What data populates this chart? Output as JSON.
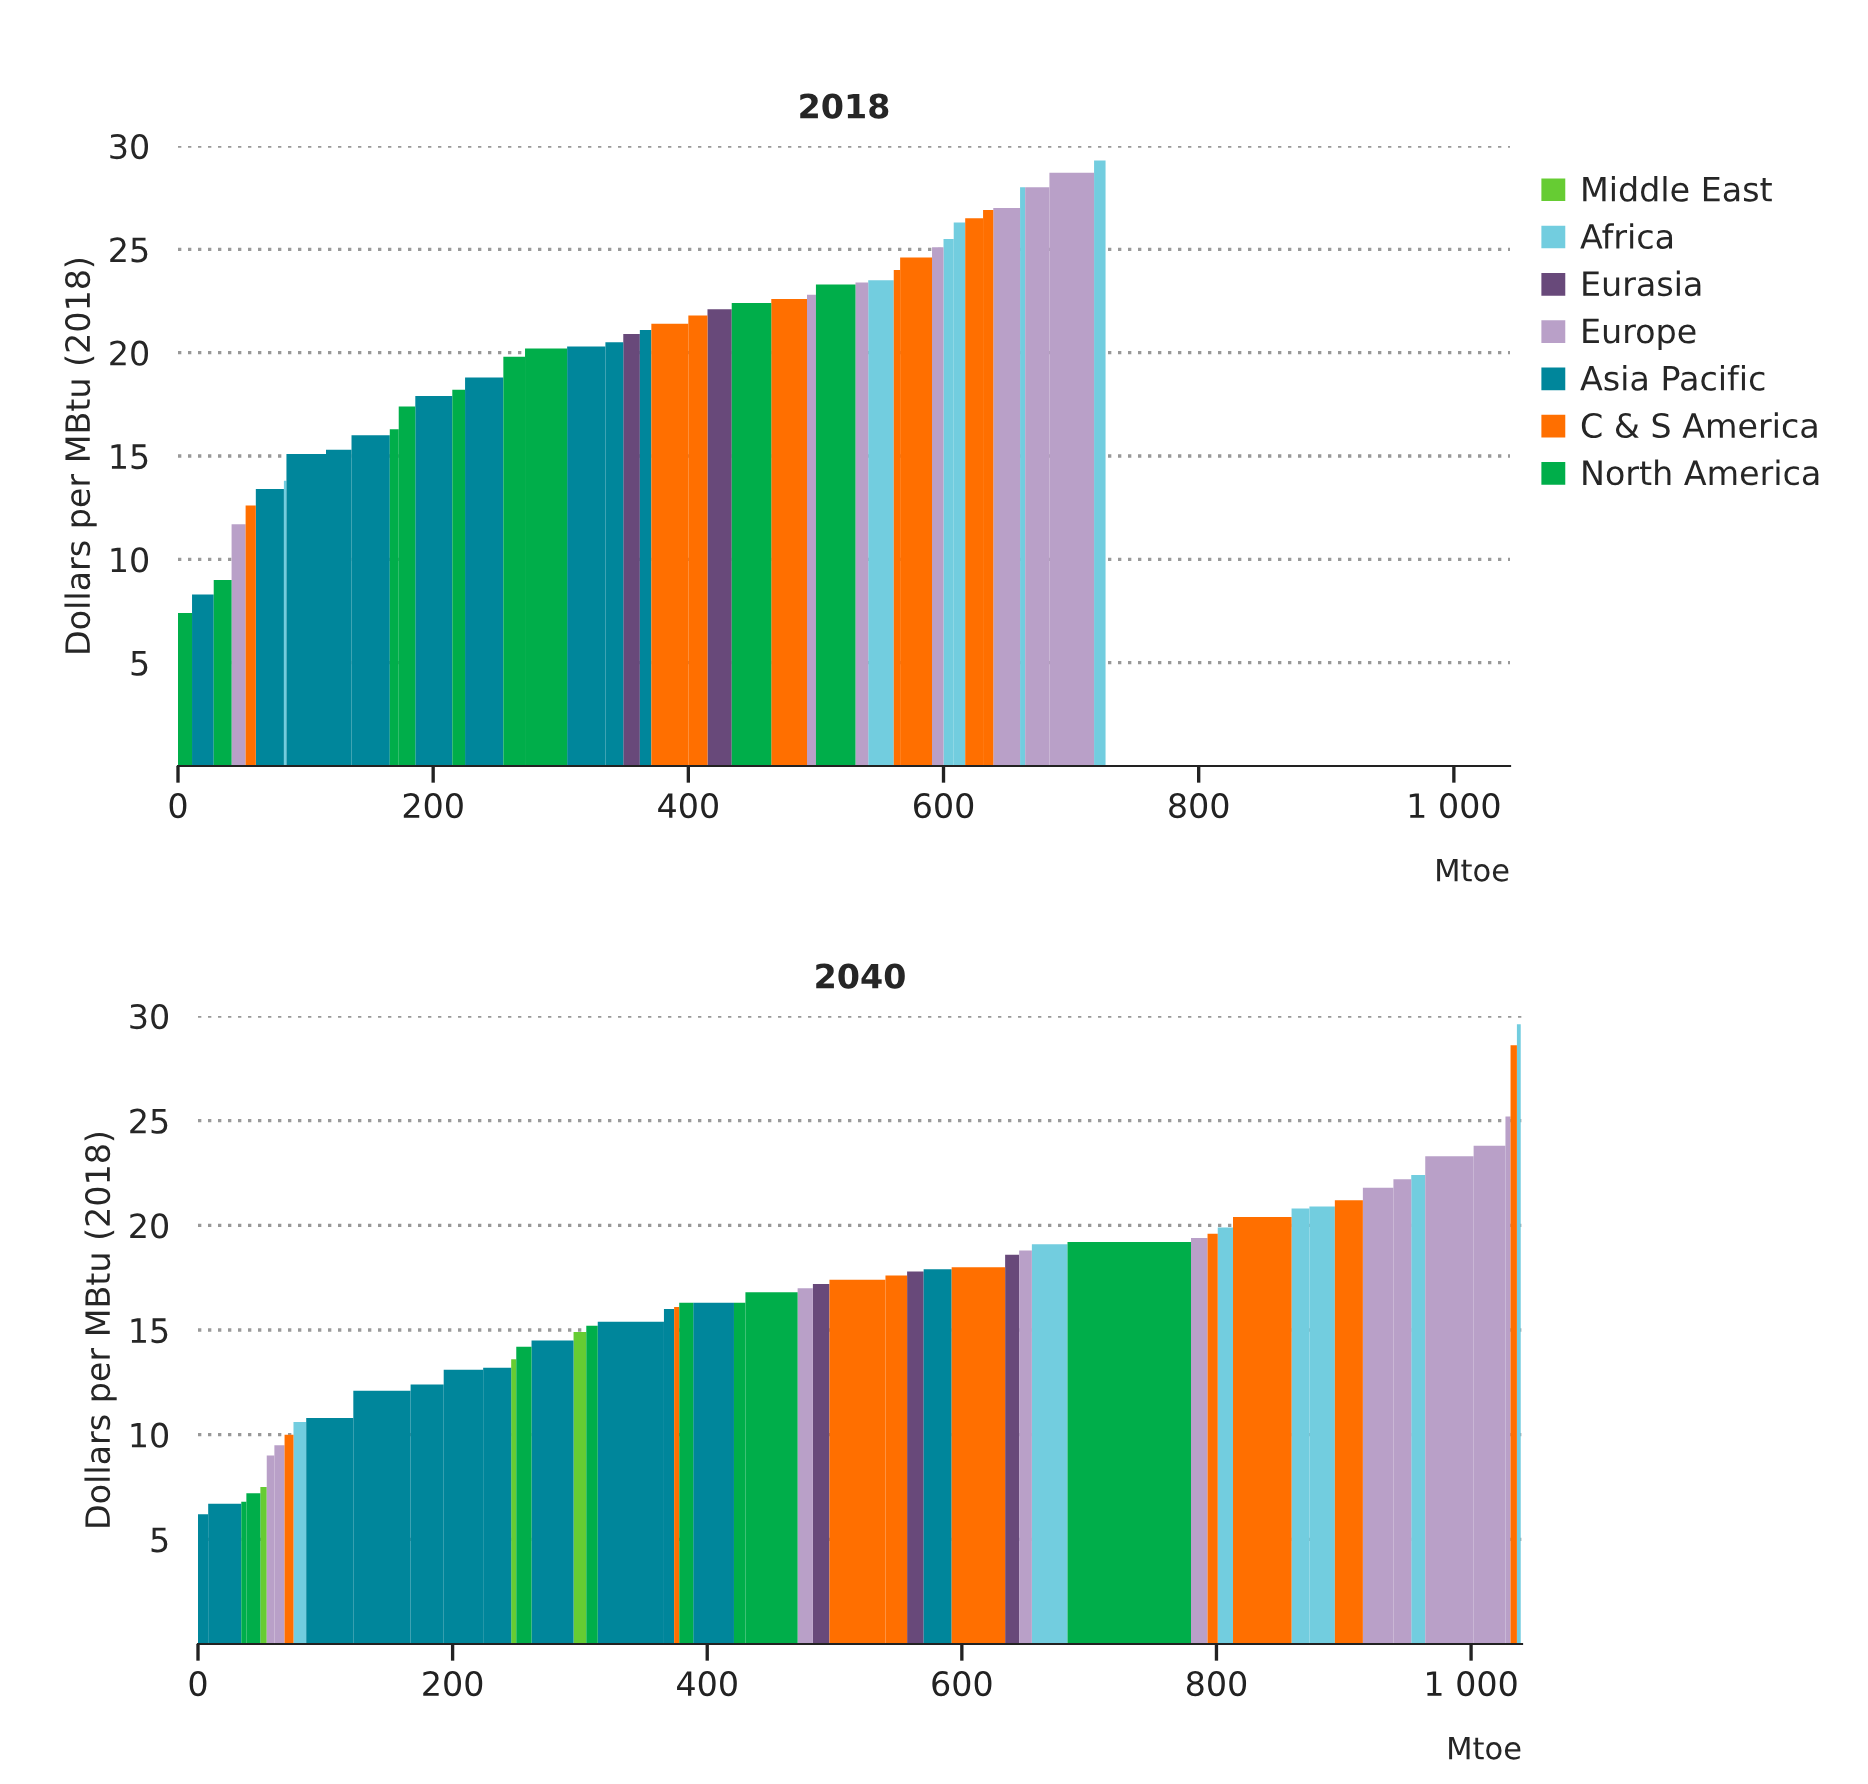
{
  "chart_data": [
    {
      "type": "bar",
      "title": "2018",
      "xlabel": "Mtoe",
      "ylabel": "Dollars per MBtu (2018)",
      "xlim": [
        0,
        1044
      ],
      "ylim": [
        0,
        30
      ],
      "xticks": [
        0,
        200,
        400,
        600,
        800,
        {
          "value": 1000,
          "label": "1 000"
        }
      ],
      "yticks": [
        5,
        10,
        15,
        20,
        25,
        30
      ],
      "grid": "y",
      "legend": "top right",
      "series": [
        {
          "name": "Middle East",
          "color": "#66cc33"
        },
        {
          "name": "Africa",
          "color": "#72cddf",
          "x": [
            84,
            551,
            604,
            612.5,
            662,
            722.5
          ],
          "values": [
            13.8,
            23.5,
            25.5,
            26.3,
            28.0,
            29.3
          ]
        },
        {
          "name": "Eurasia",
          "color": "#68497a",
          "x": [
            355.5,
            424.5
          ],
          "values": [
            20.9,
            22.1
          ]
        },
        {
          "name": "Europe",
          "color": "#b9a0c8",
          "x": [
            47.5,
            496.5,
            536,
            595.5,
            649.5,
            673.5,
            700.5
          ],
          "values": [
            11.7,
            22.8,
            23.4,
            25.1,
            27.0,
            28.0,
            28.7
          ]
        },
        {
          "name": "Asia Pacific",
          "color": "#00869b",
          "x": [
            19.5,
            72,
            100.5,
            126,
            151,
            200.5,
            240,
            320,
            342,
            366.5
          ],
          "values": [
            8.3,
            13.4,
            15.1,
            15.3,
            16.0,
            17.9,
            18.8,
            20.3,
            20.5,
            21.1
          ]
        },
        {
          "name": "C & S America",
          "color": "#ff6f00",
          "x": [
            57,
            385.5,
            407.5,
            479,
            563.5,
            578.5,
            624,
            635
          ],
          "values": [
            12.6,
            21.4,
            21.8,
            22.6,
            24.0,
            24.6,
            26.5,
            26.9
          ]
        },
        {
          "name": "North America",
          "color": "#00ae4a",
          "x": [
            5.5,
            35,
            169.5,
            179.5,
            220,
            263.5,
            288.5,
            449.5,
            515.5
          ],
          "values": [
            7.4,
            9.0,
            16.3,
            17.4,
            18.2,
            19.8,
            20.2,
            22.4,
            23.3
          ]
        }
      ]
    },
    {
      "type": "bar",
      "title": "2040",
      "xlabel": "Mtoe",
      "ylabel": "Dollars per MBtu (2018)",
      "xlim": [
        0,
        1040
      ],
      "ylim": [
        0,
        30
      ],
      "xticks": [
        0,
        200,
        400,
        600,
        800,
        {
          "value": 1000,
          "label": "1 000"
        }
      ],
      "yticks": [
        5,
        10,
        15,
        20,
        25,
        30
      ],
      "grid": "y",
      "series": [
        {
          "color": "#66cc33",
          "x": [
            51.5,
            248,
            300
          ],
          "values": [
            7.5,
            13.6,
            14.9
          ]
        },
        {
          "color": "#72cddf",
          "x": [
            80,
            669,
            807,
            866,
            883,
            958.5,
            1037.5
          ],
          "values": [
            10.6,
            19.1,
            19.9,
            20.8,
            20.9,
            22.4,
            29.6
          ]
        },
        {
          "color": "#68497a",
          "x": [
            489.5,
            563.5,
            639.5
          ],
          "values": [
            17.2,
            17.8,
            18.6
          ]
        },
        {
          "color": "#b9a0c8",
          "x": [
            57,
            64,
            477,
            650,
            786.5,
            927,
            946,
            983,
            1014.5,
            1029
          ],
          "values": [
            9.0,
            9.5,
            17.0,
            18.8,
            19.4,
            21.8,
            22.2,
            23.3,
            23.8,
            25.2
          ]
        },
        {
          "color": "#00869b",
          "x": [
            4,
            21,
            103.5,
            144.5,
            180,
            208.5,
            235,
            278.5,
            340,
            370,
            405,
            581
          ],
          "values": [
            6.2,
            6.7,
            10.8,
            12.1,
            12.4,
            13.1,
            13.2,
            14.5,
            15.4,
            16.0,
            16.3,
            17.9
          ]
        },
        {
          "color": "#ff6f00",
          "x": [
            71.5,
            376,
            518,
            548.5,
            613,
            797,
            836,
            904,
            1033.5
          ],
          "values": [
            10.0,
            16.1,
            17.4,
            17.6,
            18.0,
            19.6,
            20.4,
            21.2,
            28.6
          ]
        },
        {
          "color": "#00ae4a",
          "x": [
            36,
            43.5,
            256,
            309.5,
            383.5,
            425.5,
            450.5,
            731.5
          ],
          "values": [
            6.8,
            7.2,
            14.2,
            15.2,
            16.3,
            16.3,
            16.8,
            19.2
          ]
        }
      ]
    }
  ]
}
